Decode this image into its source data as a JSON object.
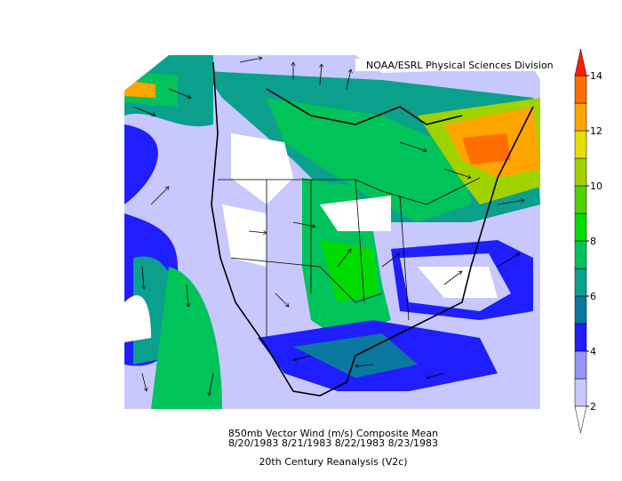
{
  "header": {
    "credit": "NOAA/ESRL Physical Sciences Division"
  },
  "caption": {
    "line1": "850mb Vector Wind (m/s) Composite Mean",
    "line2": "8/20/1983 8/21/1983 8/22/1983 8/23/1983",
    "line3": "20th Century Reanalysis (V2c)"
  },
  "colorbar": {
    "range": [
      2,
      14
    ],
    "ticks": [
      2,
      4,
      6,
      8,
      10,
      12,
      14
    ],
    "levels": [
      2,
      3,
      4,
      5,
      6,
      7,
      8,
      9,
      10,
      11,
      12,
      13,
      14
    ],
    "colors": [
      "#c8c8ff",
      "#9696ff",
      "#1e1eff",
      "#0a78a0",
      "#0aa08c",
      "#00c35a",
      "#00dc00",
      "#50d200",
      "#a0d200",
      "#e6dc00",
      "#ffa500",
      "#ff6e00"
    ],
    "under_color": "#ffffff",
    "over_color": "#ff1e00"
  }
}
